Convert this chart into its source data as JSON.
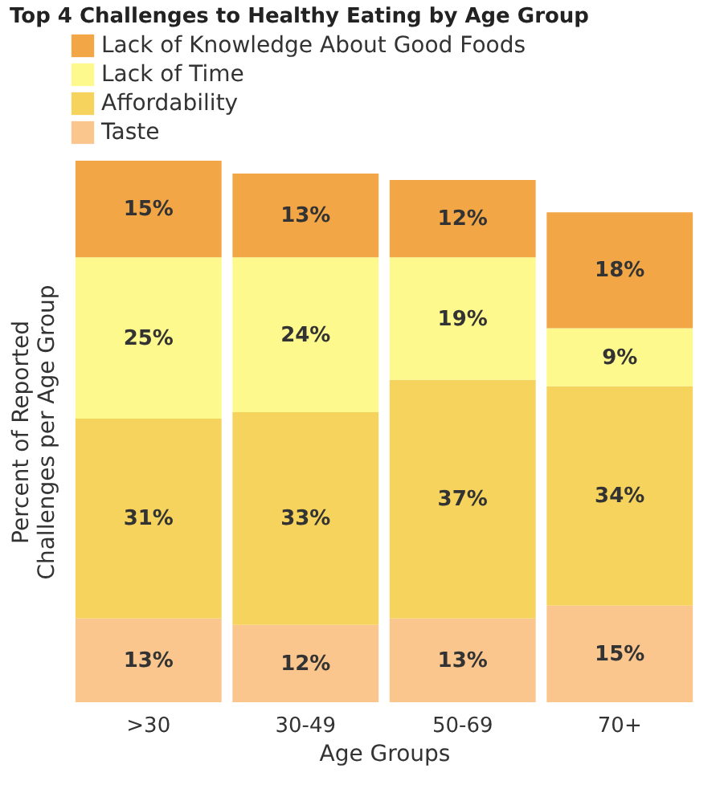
{
  "chart_data": {
    "type": "bar",
    "title": "Top 4 Challenges to Healthy Eating by Age Group",
    "xlabel": "Age Groups",
    "ylabel": "Percent of Reported Challenges per Age Group",
    "categories": [
      ">30",
      "30-49",
      "50-69",
      "70+"
    ],
    "stacked": true,
    "legend": "top left",
    "tick_labels": "x",
    "series": [
      {
        "name": "Taste",
        "color": "#fbc58e",
        "values": [
          13,
          12,
          13,
          15
        ],
        "value_labels": [
          "13%",
          "12%",
          "13%",
          "15%"
        ]
      },
      {
        "name": "Affordability",
        "color": "#f6d35c",
        "values": [
          31,
          33,
          37,
          34
        ],
        "value_labels": [
          "31%",
          "33%",
          "37%",
          "34%"
        ]
      },
      {
        "name": "Lack of Time",
        "color": "#fdf98c",
        "values": [
          25,
          24,
          19,
          9
        ],
        "value_labels": [
          "25%",
          "24%",
          "19%",
          "9%"
        ]
      },
      {
        "name": "Lack of Knowledge About Good Foods",
        "color": "#f2a646",
        "values": [
          15,
          13,
          12,
          18
        ],
        "value_labels": [
          "15%",
          "13%",
          "12%",
          "18%"
        ]
      }
    ]
  }
}
